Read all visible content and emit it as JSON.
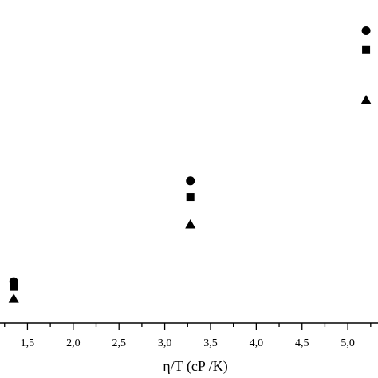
{
  "chart_data": {
    "type": "scatter",
    "title": "",
    "xlabel": "η/T (cP /K)",
    "ylabel": "",
    "xlim": [
      1.2,
      5.33
    ],
    "ylim": [
      0,
      1.0
    ],
    "grid": false,
    "x_ticks": [
      {
        "value": 1.5,
        "label": "1,5"
      },
      {
        "value": 2.0,
        "label": "2,0"
      },
      {
        "value": 2.5,
        "label": "2,5"
      },
      {
        "value": 3.0,
        "label": "3,0"
      },
      {
        "value": 3.5,
        "label": "3,5"
      },
      {
        "value": 4.0,
        "label": "4,0"
      },
      {
        "value": 4.5,
        "label": "4,5"
      },
      {
        "value": 5.0,
        "label": "5,0"
      }
    ],
    "series": [
      {
        "marker": "circle",
        "points": [
          [
            1.35,
            0.128
          ],
          [
            3.28,
            0.44
          ],
          [
            5.2,
            0.905
          ]
        ]
      },
      {
        "marker": "square",
        "points": [
          [
            1.35,
            0.112
          ],
          [
            3.28,
            0.39
          ],
          [
            5.2,
            0.845
          ]
        ]
      },
      {
        "marker": "triangle",
        "points": [
          [
            1.35,
            0.075
          ],
          [
            3.28,
            0.305
          ],
          [
            5.2,
            0.69
          ]
        ]
      }
    ]
  }
}
